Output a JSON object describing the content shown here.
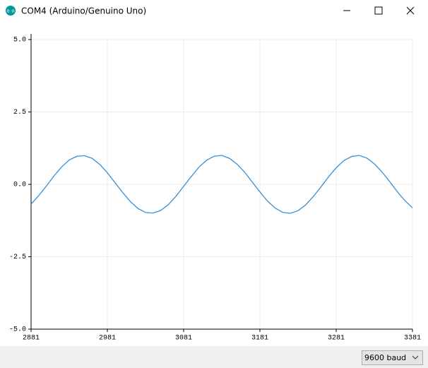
{
  "window": {
    "title": "COM4 (Arduino/Genuino Uno)"
  },
  "chart_data": {
    "type": "line",
    "x": [
      2881,
      2891,
      2901,
      2911,
      2921,
      2931,
      2941,
      2951,
      2961,
      2971,
      2981,
      2991,
      3001,
      3011,
      3021,
      3031,
      3041,
      3051,
      3061,
      3071,
      3081,
      3091,
      3101,
      3111,
      3121,
      3131,
      3141,
      3151,
      3161,
      3171,
      3181,
      3191,
      3201,
      3211,
      3221,
      3231,
      3241,
      3251,
      3261,
      3271,
      3281,
      3291,
      3301,
      3311,
      3321,
      3331,
      3341,
      3351,
      3361,
      3371,
      3381
    ],
    "values": [
      -0.68,
      -0.39,
      -0.06,
      0.29,
      0.6,
      0.84,
      0.97,
      0.99,
      0.9,
      0.69,
      0.4,
      0.06,
      -0.28,
      -0.59,
      -0.83,
      -0.97,
      -0.99,
      -0.9,
      -0.7,
      -0.41,
      -0.07,
      0.27,
      0.59,
      0.83,
      0.97,
      1.0,
      0.9,
      0.7,
      0.42,
      0.08,
      -0.26,
      -0.58,
      -0.82,
      -0.97,
      -1.0,
      -0.91,
      -0.71,
      -0.42,
      -0.09,
      0.26,
      0.57,
      0.82,
      0.96,
      1.0,
      0.91,
      0.71,
      0.43,
      0.1,
      -0.25,
      -0.56,
      -0.81
    ],
    "color": "#3b8ed0",
    "xlim": [
      2881,
      3381
    ],
    "xticks": [
      2881,
      2981,
      3081,
      3181,
      3281,
      3381
    ],
    "ylim": [
      -5,
      5
    ],
    "yticks": [
      {
        "value": -5,
        "label": "-5.0"
      },
      {
        "value": -2.5,
        "label": "-2.5"
      },
      {
        "value": 0,
        "label": "0.0"
      },
      {
        "value": 2.5,
        "label": "2.5"
      },
      {
        "value": 5,
        "label": "5.0"
      }
    ],
    "grid": true
  },
  "footer": {
    "baud": "9600 baud"
  }
}
